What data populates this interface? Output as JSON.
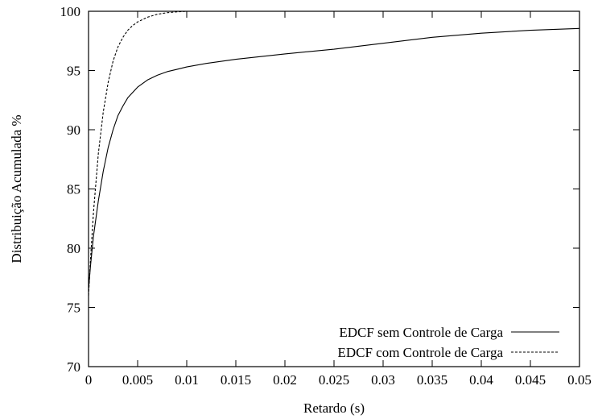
{
  "chart_data": {
    "type": "line",
    "xlabel": "Retardo (s)",
    "ylabel": "Distribuição Acumulada %",
    "xlim": [
      0,
      0.05
    ],
    "ylim": [
      70,
      100
    ],
    "xticks": [
      0,
      0.005,
      0.01,
      0.015,
      0.02,
      0.025,
      0.03,
      0.035,
      0.04,
      0.045,
      0.05
    ],
    "xtick_labels": [
      "0",
      "0.005",
      "0.01",
      "0.015",
      "0.02",
      "0.025",
      "0.03",
      "0.035",
      "0.04",
      "0.045",
      "0.05"
    ],
    "yticks": [
      70,
      75,
      80,
      85,
      90,
      95,
      100
    ],
    "ytick_labels": [
      "70",
      "75",
      "80",
      "85",
      "90",
      "95",
      "100"
    ],
    "grid": false,
    "legend_position": "bottom-right",
    "series": [
      {
        "name": "EDCF sem Controle de Carga",
        "style": "solid",
        "color": "#000000",
        "x": [
          0,
          0.0002,
          0.0005,
          0.001,
          0.0015,
          0.002,
          0.0025,
          0.003,
          0.0035,
          0.004,
          0.005,
          0.006,
          0.007,
          0.008,
          0.009,
          0.01,
          0.012,
          0.015,
          0.02,
          0.025,
          0.03,
          0.035,
          0.04,
          0.045,
          0.05
        ],
        "y": [
          76.5,
          78.5,
          81.0,
          84.0,
          86.5,
          88.5,
          90.0,
          91.2,
          92.0,
          92.7,
          93.6,
          94.2,
          94.6,
          94.9,
          95.1,
          95.3,
          95.6,
          95.95,
          96.4,
          96.8,
          97.3,
          97.8,
          98.15,
          98.4,
          98.55
        ]
      },
      {
        "name": "EDCF com Controle de Carga",
        "style": "dashed",
        "color": "#000000",
        "x": [
          0,
          0.0002,
          0.0005,
          0.001,
          0.0015,
          0.002,
          0.0025,
          0.003,
          0.0035,
          0.004,
          0.0045,
          0.005,
          0.006,
          0.007,
          0.008,
          0.009,
          0.01,
          0.012,
          0.015
        ],
        "y": [
          76.0,
          79.0,
          83.0,
          88.0,
          91.5,
          94.0,
          95.8,
          97.0,
          97.8,
          98.4,
          98.8,
          99.1,
          99.5,
          99.75,
          99.88,
          99.95,
          100.0,
          100.0,
          100.0
        ]
      }
    ]
  }
}
